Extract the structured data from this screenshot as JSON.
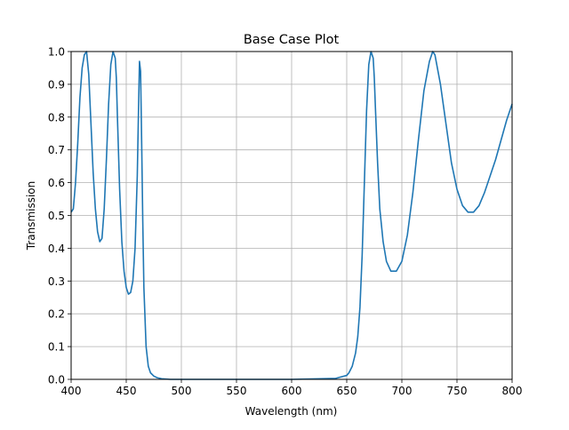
{
  "chart_data": {
    "type": "line",
    "title": "Base Case Plot",
    "xlabel": "Wavelength (nm)",
    "ylabel": "Transmission",
    "xlim": [
      400,
      800
    ],
    "ylim": [
      0,
      1
    ],
    "xticks": [
      400,
      450,
      500,
      550,
      600,
      650,
      700,
      750,
      800
    ],
    "yticks": [
      0.0,
      0.1,
      0.2,
      0.3,
      0.4,
      0.5,
      0.6,
      0.7,
      0.8,
      0.9,
      1.0
    ],
    "xtick_labels": [
      "400",
      "450",
      "500",
      "550",
      "600",
      "650",
      "700",
      "750",
      "800"
    ],
    "ytick_labels": [
      "0.0",
      "0.1",
      "0.2",
      "0.3",
      "0.4",
      "0.5",
      "0.6",
      "0.7",
      "0.8",
      "0.9",
      "1.0"
    ],
    "grid": true,
    "series": [
      {
        "color": "#1f77b4",
        "x": [
          400,
          402,
          404,
          406,
          408,
          410,
          412,
          414,
          416,
          418,
          420,
          422,
          424,
          426,
          428,
          430,
          432,
          434,
          436,
          438,
          440,
          441,
          442,
          444,
          446,
          448,
          450,
          452,
          454,
          456,
          458,
          460,
          461,
          462,
          463,
          464,
          465,
          466,
          468,
          470,
          472,
          475,
          478,
          482,
          486,
          490,
          500,
          520,
          550,
          600,
          640,
          650,
          652,
          655,
          658,
          660,
          662,
          664,
          666,
          668,
          670,
          672,
          674,
          675,
          676,
          678,
          680,
          683,
          686,
          690,
          695,
          700,
          705,
          710,
          715,
          720,
          725,
          728,
          730,
          735,
          740,
          745,
          750,
          755,
          760,
          765,
          770,
          775,
          780,
          785,
          790,
          795,
          800
        ],
        "y": [
          0.51,
          0.52,
          0.6,
          0.72,
          0.86,
          0.95,
          0.99,
          1.0,
          0.93,
          0.78,
          0.63,
          0.52,
          0.45,
          0.42,
          0.43,
          0.52,
          0.67,
          0.84,
          0.96,
          1.0,
          0.98,
          0.92,
          0.8,
          0.58,
          0.42,
          0.33,
          0.28,
          0.26,
          0.265,
          0.3,
          0.4,
          0.62,
          0.8,
          0.97,
          0.94,
          0.72,
          0.48,
          0.28,
          0.1,
          0.04,
          0.02,
          0.01,
          0.005,
          0.002,
          0.001,
          0.0,
          0.0,
          0.0,
          0.0,
          0.0,
          0.003,
          0.012,
          0.02,
          0.04,
          0.08,
          0.13,
          0.22,
          0.38,
          0.6,
          0.82,
          0.96,
          1.0,
          0.98,
          0.92,
          0.83,
          0.66,
          0.52,
          0.42,
          0.36,
          0.33,
          0.33,
          0.36,
          0.44,
          0.57,
          0.73,
          0.88,
          0.97,
          1.0,
          0.99,
          0.9,
          0.78,
          0.66,
          0.58,
          0.53,
          0.51,
          0.51,
          0.53,
          0.57,
          0.62,
          0.67,
          0.73,
          0.79,
          0.84
        ]
      }
    ]
  }
}
